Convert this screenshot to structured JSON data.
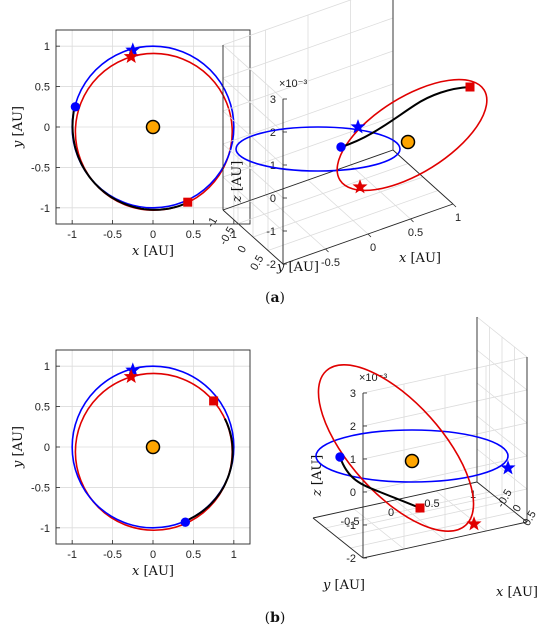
{
  "colors": {
    "earth": "#0000ff",
    "target": "#e00000",
    "transfer": "#000000",
    "sun": "#ffa500",
    "grid": "#dcdcdc",
    "axis": "#262626"
  },
  "panels": [
    {
      "label_prefix": "(",
      "label_letter": "a",
      "label_suffix": ")"
    },
    {
      "label_prefix": "(",
      "label_letter": "b",
      "label_suffix": ")"
    }
  ],
  "chart_data": [
    {
      "id": "a-2d",
      "type": "line",
      "xlabel_var": "x",
      "xlabel_unit": "[AU]",
      "ylabel_var": "y",
      "ylabel_unit": "[AU]",
      "xlim": [
        -1.2,
        1.2
      ],
      "ylim": [
        -1.2,
        1.2
      ],
      "xticks": [
        "-1",
        "-0.5",
        "0",
        "0.5",
        "1"
      ],
      "yticks": [
        "-1",
        "-0.5",
        "0",
        "0.5",
        "1"
      ],
      "grid": true,
      "sun": {
        "x": 0,
        "y": 0
      },
      "earth_orbit": {
        "radius": 1.0
      },
      "target_orbit": {
        "radius": 0.97,
        "center_x": 0.01,
        "center_y": -0.06
      },
      "transfer": {
        "from_deg": 165,
        "to_deg": 295
      },
      "markers": [
        {
          "kind": "star",
          "series": "earth",
          "x": -0.25,
          "y": 0.95
        },
        {
          "kind": "star",
          "series": "target",
          "x": -0.27,
          "y": 0.87
        },
        {
          "kind": "circle",
          "series": "earth",
          "x": -0.96,
          "y": 0.25
        },
        {
          "kind": "square",
          "series": "target",
          "x": 0.43,
          "y": -0.93
        }
      ]
    },
    {
      "id": "a-3d",
      "type": "line",
      "xlabel_var": "x",
      "xlabel_unit": "[AU]",
      "ylabel_var": "y",
      "ylabel_unit": "[AU]",
      "zlabel_var": "z",
      "zlabel_unit": "[AU]",
      "zscale": "×10⁻³",
      "xlim": [
        -1,
        1
      ],
      "ylim": [
        -1,
        1
      ],
      "zlim": [
        -2,
        3
      ],
      "xticks": [
        "-0.5",
        "0",
        "0.5",
        "1"
      ],
      "yticks": [
        "0.5",
        "0",
        "-0.5",
        "-1"
      ],
      "zticks": [
        "-2",
        "-1",
        "0",
        "1",
        "2",
        "3"
      ],
      "grid": true
    },
    {
      "id": "b-2d",
      "type": "line",
      "xlabel_var": "x",
      "xlabel_unit": "[AU]",
      "ylabel_var": "y",
      "ylabel_unit": "[AU]",
      "xlim": [
        -1.2,
        1.2
      ],
      "ylim": [
        -1.2,
        1.2
      ],
      "xticks": [
        "-1",
        "-0.5",
        "0",
        "0.5",
        "1"
      ],
      "yticks": [
        "-1",
        "-0.5",
        "0",
        "0.5",
        "1"
      ],
      "grid": true,
      "sun": {
        "x": 0,
        "y": 0
      },
      "earth_orbit": {
        "radius": 1.0
      },
      "target_orbit": {
        "radius": 0.97,
        "center_x": 0.01,
        "center_y": -0.06
      },
      "transfer": {
        "from_deg": 295,
        "to_deg": 385
      },
      "markers": [
        {
          "kind": "star",
          "series": "earth",
          "x": -0.25,
          "y": 0.95
        },
        {
          "kind": "star",
          "series": "target",
          "x": -0.27,
          "y": 0.87
        },
        {
          "kind": "circle",
          "series": "earth",
          "x": 0.4,
          "y": -0.93
        },
        {
          "kind": "square",
          "series": "target",
          "x": 0.75,
          "y": 0.57
        }
      ]
    },
    {
      "id": "b-3d",
      "type": "line",
      "xlabel_var": "x",
      "xlabel_unit": "[AU]",
      "ylabel_var": "y",
      "ylabel_unit": "[AU]",
      "zlabel_var": "z",
      "zlabel_unit": "[AU]",
      "zscale": "×10⁻³",
      "xlim": [
        -1,
        1
      ],
      "ylim": [
        -1,
        1
      ],
      "zlim": [
        -2,
        3
      ],
      "xticks": [
        "-0.5",
        "0",
        "0.5"
      ],
      "yticks": [
        "-0.5",
        "0",
        "0.5",
        "1"
      ],
      "zticks": [
        "-2",
        "-1",
        "0",
        "1",
        "2",
        "3"
      ],
      "grid": true
    }
  ]
}
